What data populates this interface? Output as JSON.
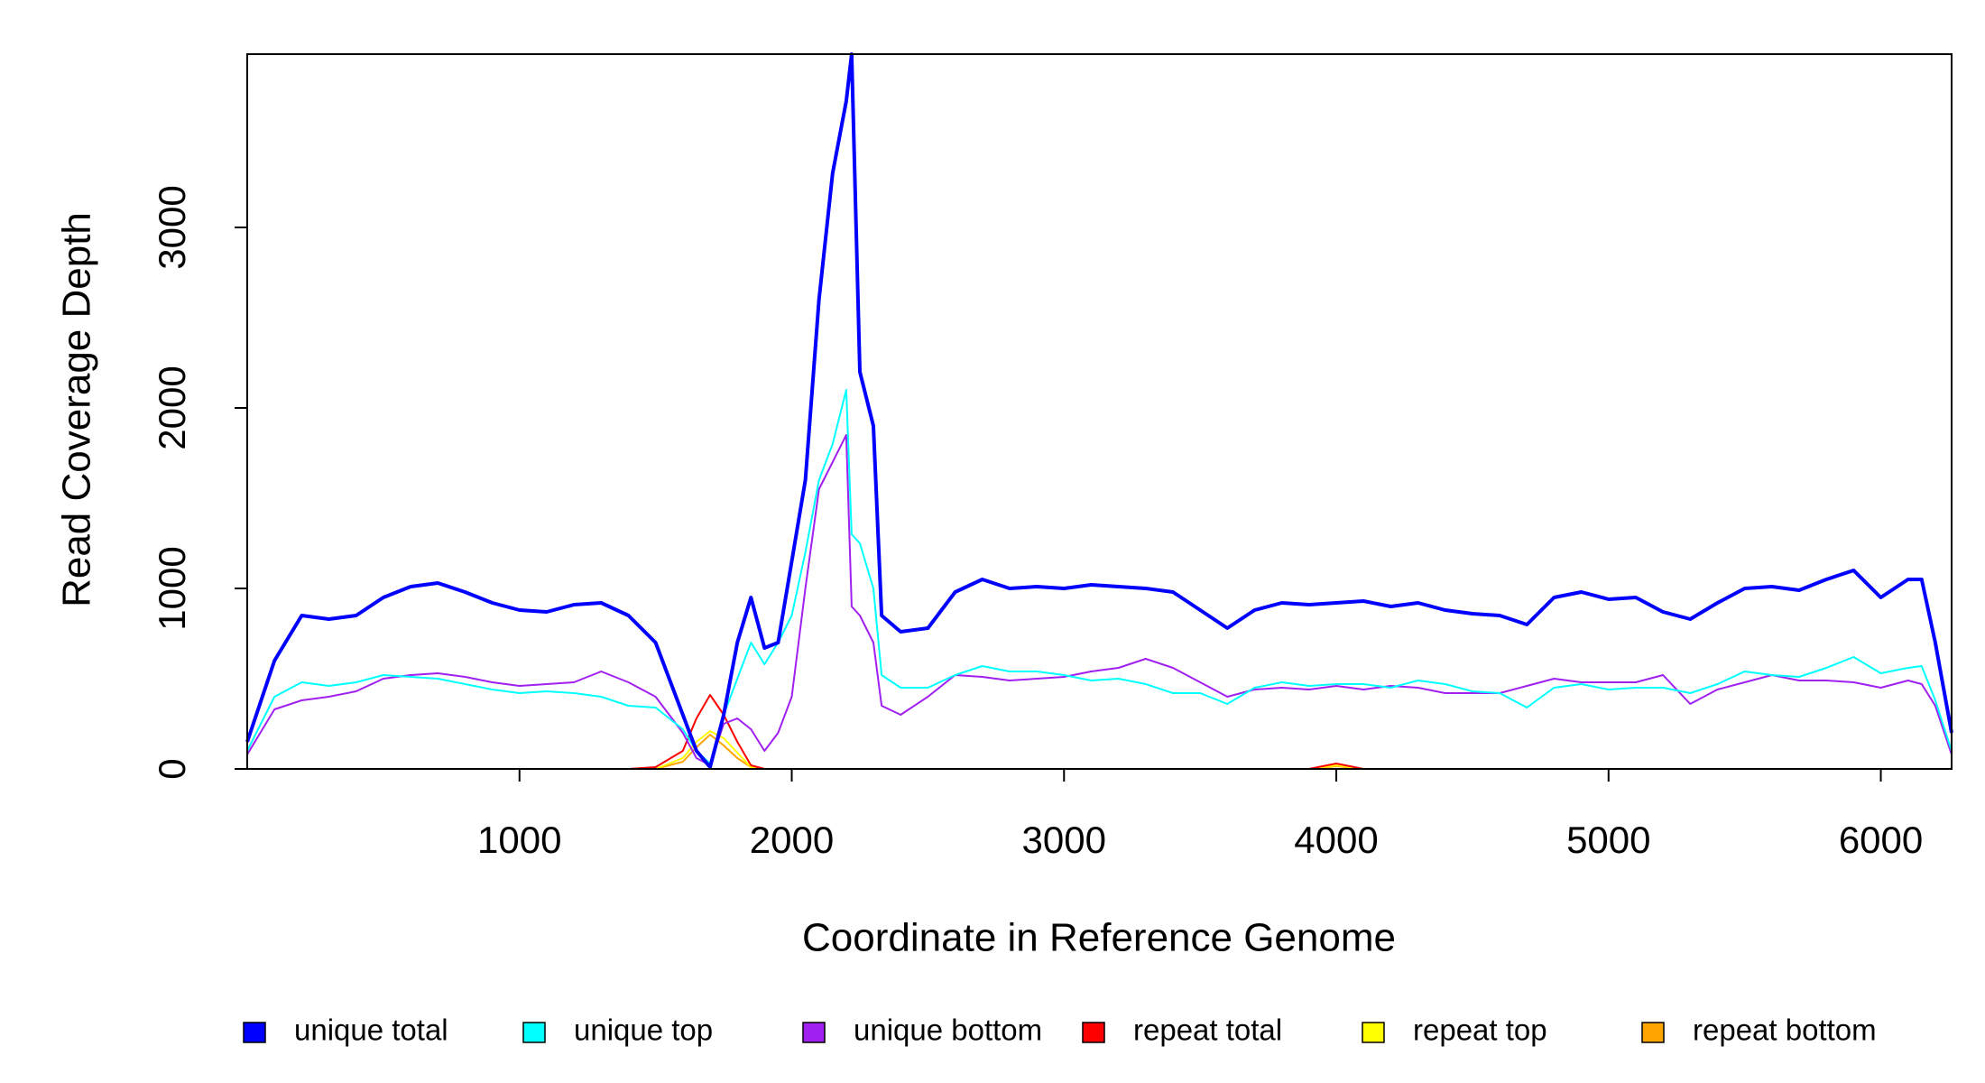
{
  "chart_data": {
    "type": "line",
    "xlabel": "Coordinate in Reference Genome",
    "ylabel": "Read Coverage Depth",
    "x": [
      0,
      100,
      200,
      300,
      400,
      500,
      600,
      700,
      800,
      900,
      1000,
      1100,
      1200,
      1300,
      1400,
      1500,
      1600,
      1650,
      1700,
      1750,
      1800,
      1850,
      1900,
      1950,
      2000,
      2050,
      2100,
      2150,
      2200,
      2220,
      2250,
      2300,
      2330,
      2400,
      2500,
      2600,
      2700,
      2800,
      2900,
      3000,
      3100,
      3200,
      3300,
      3400,
      3500,
      3600,
      3700,
      3800,
      3900,
      4000,
      4100,
      4200,
      4300,
      4400,
      4500,
      4600,
      4700,
      4800,
      4900,
      5000,
      5100,
      5200,
      5300,
      5400,
      5500,
      5600,
      5700,
      5800,
      5900,
      6000,
      6100,
      6150,
      6200,
      6260
    ],
    "xlim": [
      0,
      6260
    ],
    "xticks": [
      1000,
      2000,
      3000,
      4000,
      5000,
      6000
    ],
    "ylim": [
      0,
      3960
    ],
    "yticks": [
      0,
      1000,
      2000,
      3000
    ],
    "legend": "bottom",
    "series": [
      {
        "name": "unique total",
        "color": "#0000ff",
        "values": [
          150,
          600,
          850,
          830,
          850,
          950,
          1010,
          1030,
          980,
          920,
          880,
          870,
          910,
          920,
          850,
          700,
          300,
          100,
          10,
          300,
          700,
          950,
          670,
          700,
          1150,
          1600,
          2600,
          3300,
          3700,
          3960,
          2200,
          1900,
          850,
          760,
          780,
          980,
          1050,
          1000,
          1010,
          1000,
          1020,
          1010,
          1000,
          980,
          880,
          780,
          880,
          920,
          910,
          920,
          930,
          900,
          920,
          880,
          860,
          850,
          800,
          950,
          980,
          940,
          950,
          870,
          830,
          920,
          1000,
          1010,
          990,
          1050,
          1100,
          950,
          1050,
          1050,
          700,
          200
        ]
      },
      {
        "name": "unique top",
        "color": "#00ffff",
        "values": [
          100,
          400,
          480,
          460,
          480,
          520,
          510,
          500,
          470,
          440,
          420,
          430,
          420,
          400,
          350,
          340,
          220,
          100,
          30,
          300,
          500,
          700,
          580,
          700,
          850,
          1200,
          1600,
          1800,
          2100,
          1300,
          1250,
          1000,
          520,
          450,
          450,
          520,
          570,
          540,
          540,
          520,
          490,
          500,
          470,
          420,
          420,
          360,
          450,
          480,
          460,
          470,
          470,
          450,
          490,
          470,
          430,
          420,
          340,
          450,
          470,
          440,
          450,
          450,
          420,
          470,
          540,
          520,
          510,
          560,
          620,
          530,
          560,
          570,
          380,
          100
        ]
      },
      {
        "name": "unique bottom",
        "color": "#a020f0",
        "values": [
          80,
          330,
          380,
          400,
          430,
          500,
          520,
          530,
          510,
          480,
          460,
          470,
          480,
          540,
          480,
          400,
          200,
          60,
          20,
          250,
          280,
          220,
          100,
          200,
          400,
          1000,
          1550,
          1700,
          1850,
          900,
          850,
          700,
          350,
          300,
          400,
          520,
          510,
          490,
          500,
          510,
          540,
          560,
          610,
          560,
          480,
          400,
          440,
          450,
          440,
          460,
          440,
          460,
          450,
          420,
          420,
          420,
          460,
          500,
          480,
          480,
          480,
          520,
          360,
          440,
          480,
          520,
          490,
          490,
          480,
          450,
          490,
          470,
          350,
          80
        ]
      },
      {
        "name": "repeat total",
        "color": "#ff0000",
        "values": [
          0,
          0,
          0,
          0,
          0,
          0,
          0,
          0,
          0,
          0,
          0,
          0,
          0,
          0,
          0,
          10,
          100,
          280,
          410,
          300,
          150,
          20,
          0,
          0,
          0,
          0,
          0,
          0,
          0,
          0,
          0,
          0,
          0,
          0,
          0,
          0,
          0,
          0,
          0,
          0,
          0,
          0,
          0,
          0,
          0,
          0,
          0,
          0,
          0,
          30,
          0,
          0,
          0,
          0,
          0,
          0,
          0,
          0,
          0,
          0,
          0,
          0,
          0,
          0,
          0,
          0,
          0,
          0,
          0,
          0,
          0,
          0,
          0,
          0
        ]
      },
      {
        "name": "repeat top",
        "color": "#ffff00",
        "values": [
          0,
          0,
          0,
          0,
          0,
          0,
          0,
          0,
          0,
          0,
          0,
          0,
          0,
          0,
          0,
          0,
          60,
          150,
          210,
          170,
          90,
          10,
          0,
          0,
          0,
          0,
          0,
          0,
          0,
          0,
          0,
          0,
          0,
          0,
          0,
          0,
          0,
          0,
          0,
          0,
          0,
          0,
          0,
          0,
          0,
          0,
          0,
          0,
          0,
          20,
          0,
          0,
          0,
          0,
          0,
          0,
          0,
          0,
          0,
          0,
          0,
          0,
          0,
          0,
          0,
          0,
          0,
          0,
          0,
          0,
          0,
          0,
          0,
          0
        ]
      },
      {
        "name": "repeat bottom",
        "color": "#ffa500",
        "values": [
          0,
          0,
          0,
          0,
          0,
          0,
          0,
          0,
          0,
          0,
          0,
          0,
          0,
          0,
          0,
          0,
          40,
          120,
          190,
          130,
          60,
          10,
          0,
          0,
          0,
          0,
          0,
          0,
          0,
          0,
          0,
          0,
          0,
          0,
          0,
          0,
          0,
          0,
          0,
          0,
          0,
          0,
          0,
          0,
          0,
          0,
          0,
          0,
          0,
          15,
          0,
          0,
          0,
          0,
          0,
          0,
          0,
          0,
          0,
          0,
          0,
          0,
          0,
          0,
          0,
          0,
          0,
          0,
          0,
          0,
          0,
          0,
          0,
          0
        ]
      }
    ]
  }
}
